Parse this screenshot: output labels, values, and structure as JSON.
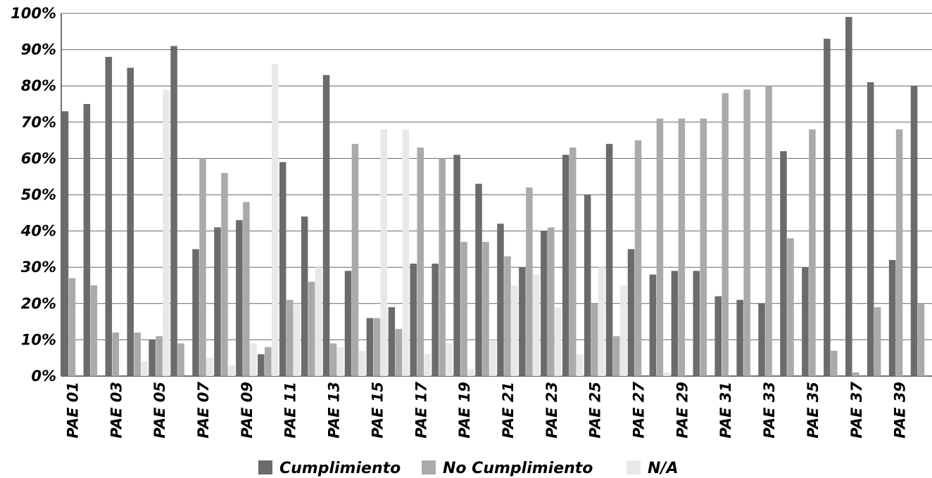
{
  "chart_data": {
    "type": "bar",
    "categories": [
      "PAE 01",
      "PAE 02",
      "PAE 03",
      "PAE 04",
      "PAE 05",
      "PAE 06",
      "PAE 07",
      "PAE 08",
      "PAE 09",
      "PAE 10",
      "PAE 11",
      "PAE 12",
      "PAE 13",
      "PAE 14",
      "PAE 15",
      "PAE 16",
      "PAE 17",
      "PAE 18",
      "PAE 19",
      "PAE 20",
      "PAE 21",
      "PAE 22",
      "PAE 23",
      "PAE 24",
      "PAE 25",
      "PAE 26",
      "PAE 27",
      "PAE 28",
      "PAE 29",
      "PAE 30",
      "PAE 31",
      "PAE 32",
      "PAE 33",
      "PAE 34",
      "PAE 35",
      "PAE 36",
      "PAE 37",
      "PAE 38",
      "PAE 39",
      "PAE 40"
    ],
    "shown_tick_labels": [
      "PAE 01",
      "PAE 03",
      "PAE 05",
      "PAE 07",
      "PAE 09",
      "PAE 11",
      "PAE 13",
      "PAE 15",
      "PAE 17",
      "PAE 19",
      "PAE 21",
      "PAE 23",
      "PAE 25",
      "PAE 27",
      "PAE 29",
      "PAE 31",
      "PAE 33",
      "PAE 35",
      "PAE 37",
      "PAE 39"
    ],
    "series": [
      {
        "name": "Cumplimiento",
        "color": "#6b6b6b",
        "values": [
          73,
          75,
          88,
          85,
          10,
          91,
          35,
          41,
          43,
          6,
          59,
          44,
          83,
          29,
          16,
          19,
          31,
          31,
          61,
          53,
          42,
          30,
          40,
          61,
          50,
          64,
          35,
          28,
          29,
          29,
          22,
          21,
          20,
          62,
          30,
          93,
          99,
          81,
          32,
          80
        ]
      },
      {
        "name": "No Cumplimiento",
        "color": "#aaaaaa",
        "values": [
          27,
          25,
          12,
          12,
          11,
          9,
          60,
          56,
          48,
          8,
          21,
          26,
          9,
          64,
          16,
          13,
          63,
          60,
          37,
          37,
          33,
          52,
          41,
          63,
          20,
          11,
          65,
          71,
          71,
          71,
          78,
          79,
          80,
          38,
          68,
          7,
          1,
          19,
          68,
          20
        ]
      },
      {
        "name": "N/A",
        "color": "#e8e8e8",
        "values": [
          0,
          0,
          0,
          4,
          79,
          0,
          5,
          3,
          9,
          86,
          20,
          30,
          8,
          7,
          68,
          68,
          6,
          9,
          2,
          10,
          25,
          28,
          19,
          6,
          30,
          25,
          0,
          1,
          0,
          0,
          0,
          0,
          0,
          0,
          0,
          0,
          0,
          0,
          0,
          0
        ]
      }
    ],
    "y_ticks": [
      "0%",
      "10%",
      "20%",
      "30%",
      "40%",
      "50%",
      "60%",
      "70%",
      "80%",
      "90%",
      "100%"
    ],
    "ylim": [
      0,
      100
    ],
    "grid": true,
    "legend_position": "bottom",
    "title": "",
    "xlabel": "",
    "ylabel": ""
  }
}
